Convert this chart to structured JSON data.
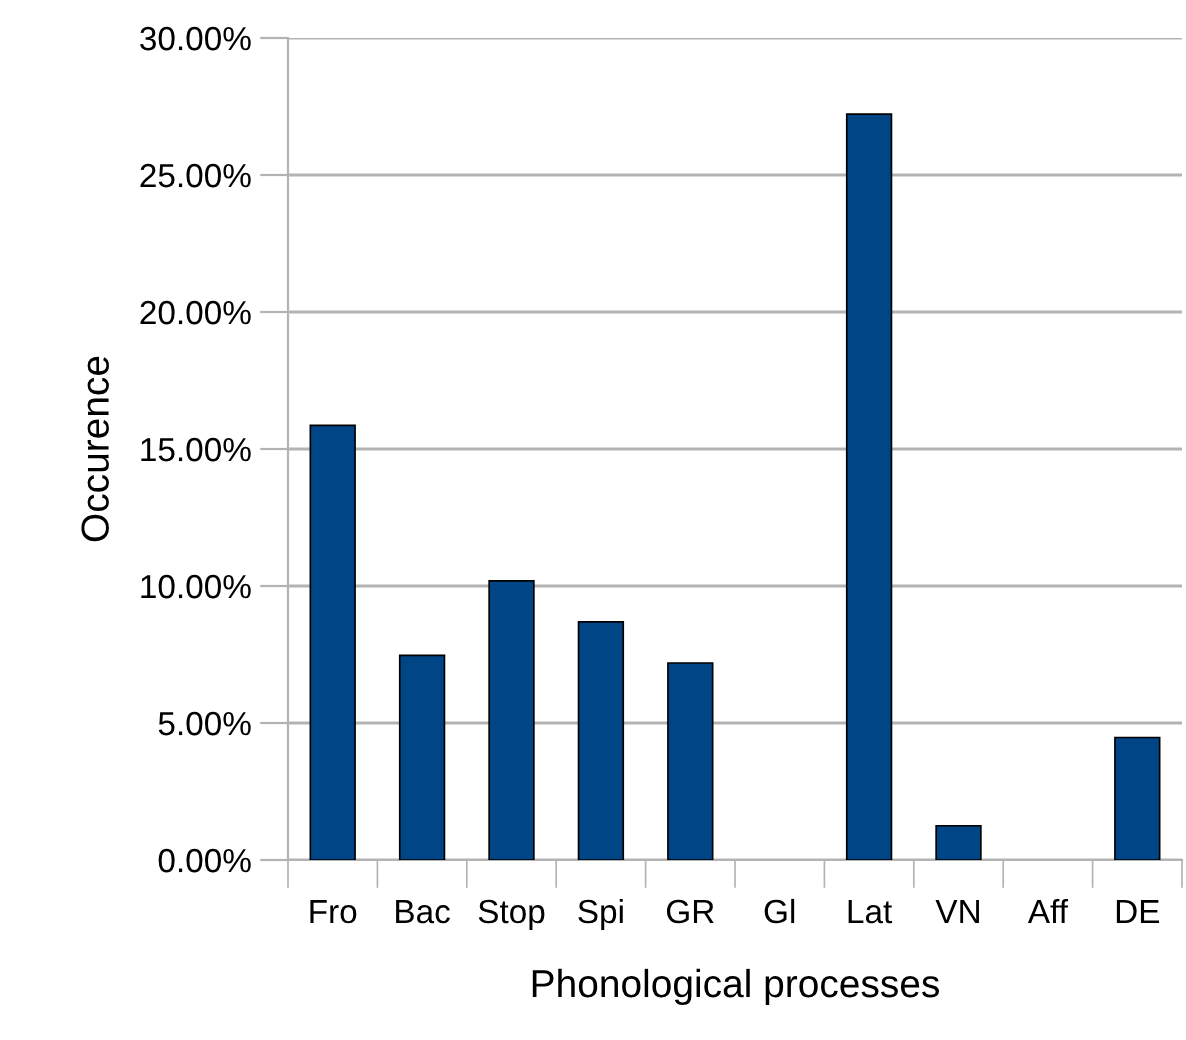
{
  "chart_data": {
    "type": "bar",
    "xlabel": "Phonological processes",
    "ylabel": "Occurence",
    "categories": [
      "Fro",
      "Bac",
      "Stop",
      "Spi",
      "GR",
      "Gl",
      "Lat",
      "VN",
      "Aff",
      "DE"
    ],
    "values": [
      15.86,
      7.47,
      10.19,
      8.69,
      7.19,
      0,
      27.22,
      1.25,
      0,
      4.47
    ],
    "color": "#004586",
    "ylim": [
      0,
      30
    ],
    "yticks": [
      {
        "value": 0,
        "label": "0.00%"
      },
      {
        "value": 5,
        "label": "5.00%"
      },
      {
        "value": 10,
        "label": "10.00%"
      },
      {
        "value": 15,
        "label": "15.00%"
      },
      {
        "value": 20,
        "label": "20.00%"
      },
      {
        "value": 25,
        "label": "25.00%"
      },
      {
        "value": 30,
        "label": "30.00%"
      }
    ],
    "grid": "y",
    "legend": false
  }
}
